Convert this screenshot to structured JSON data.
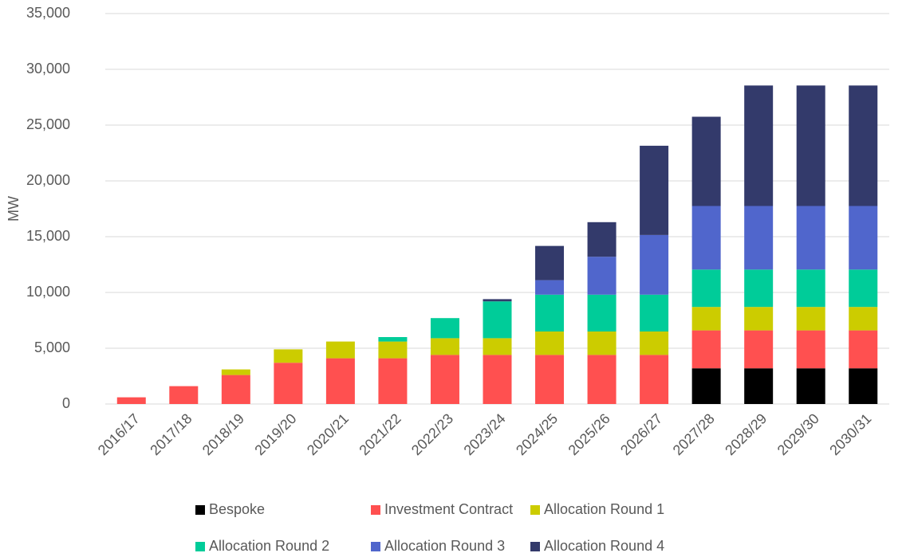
{
  "chart_data": {
    "type": "stacked_bar",
    "y_label": "MW",
    "categories": [
      "2016/17",
      "2017/18",
      "2018/19",
      "2019/20",
      "2020/21",
      "2021/22",
      "2022/23",
      "2023/24",
      "2024/25",
      "2025/26",
      "2026/27",
      "2027/28",
      "2028/29",
      "2029/30",
      "2030/31"
    ],
    "series": [
      {
        "name": "Bespoke",
        "color": "#000000",
        "values": [
          0,
          0,
          0,
          0,
          0,
          0,
          0,
          0,
          0,
          0,
          0,
          3200,
          3200,
          3200,
          3200
        ]
      },
      {
        "name": "Investment Contract",
        "color": "#ff5050",
        "values": [
          600,
          1600,
          2600,
          3700,
          4100,
          4100,
          4400,
          4400,
          4400,
          4400,
          4400,
          3400,
          3400,
          3400,
          3400
        ]
      },
      {
        "name": "Allocation Round 1",
        "color": "#cccc00",
        "values": [
          0,
          0,
          500,
          1200,
          1500,
          1500,
          1500,
          1500,
          2100,
          2100,
          2100,
          2100,
          2100,
          2100,
          2100
        ]
      },
      {
        "name": "Allocation Round 2",
        "color": "#00cc99",
        "values": [
          0,
          0,
          0,
          0,
          0,
          400,
          1800,
          3300,
          3300,
          3300,
          3300,
          3350,
          3350,
          3350,
          3350
        ]
      },
      {
        "name": "Allocation Round 3",
        "color": "#5066cc",
        "values": [
          0,
          0,
          0,
          0,
          0,
          0,
          0,
          0,
          1300,
          3400,
          5350,
          5700,
          5700,
          5700,
          5700
        ]
      },
      {
        "name": "Allocation Round 4",
        "color": "#333a6b",
        "values": [
          0,
          0,
          0,
          0,
          0,
          0,
          0,
          200,
          3070,
          3100,
          8000,
          8000,
          10800,
          10800,
          10800
        ]
      }
    ],
    "ylim": [
      0,
      35000
    ],
    "yticks": [
      0,
      {
        "value": 5000,
        "label": "5,000"
      },
      {
        "value": 10000,
        "label": "10,000"
      },
      {
        "value": 15000,
        "label": "15,000"
      },
      {
        "value": 20000,
        "label": "20,000"
      },
      {
        "value": 25000,
        "label": "25,000"
      },
      {
        "value": 30000,
        "label": "30,000"
      },
      {
        "value": 35000,
        "label": "35,000"
      }
    ],
    "grid": true,
    "legend": "bottom"
  }
}
